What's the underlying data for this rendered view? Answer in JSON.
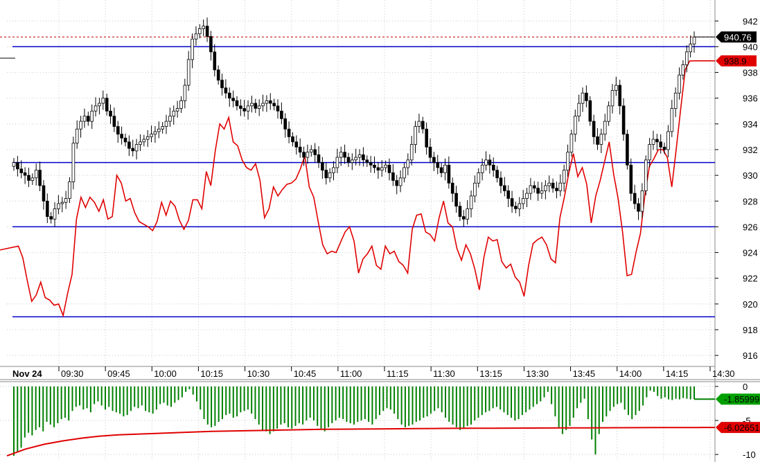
{
  "colors": {
    "grid": "#c8c8c8",
    "candle_up": "#ffffff",
    "candle_down": "#000000",
    "candle_outline": "#000000",
    "red_line": "#e00000",
    "level_line": "#0000c8",
    "histogram": "#008000",
    "ref_dashed": "#c00000",
    "tag_dark_bg": "#000000",
    "tag_red_bg": "#e00000",
    "tag_green_bg": "#00a000"
  },
  "chart_data": [
    {
      "type": "candlestick",
      "date_label": "Nov 24",
      "time_labels": [
        "09:30",
        "09:45",
        "10:00",
        "10:15",
        "10:30",
        "10:45",
        "11:00",
        "11:15",
        "11:30",
        "13:15",
        "13:30",
        "13:45",
        "14:00",
        "14:15",
        "14:30"
      ],
      "yticks": [
        916,
        918,
        920,
        922,
        924,
        926,
        928,
        930,
        932,
        934,
        936,
        938,
        940,
        942
      ],
      "ylim": [
        915.2,
        943.2
      ],
      "horizontal_levels": [
        940,
        931,
        926,
        919
      ],
      "reference_level": 940.76,
      "last_price_tag": "940.76",
      "red_line_tag": "938.9",
      "close_series": [
        931,
        930.5,
        930.2,
        930.0,
        929.6,
        929.8,
        930.4,
        929.2,
        928.0,
        926.8,
        926.6,
        927.4,
        927.8,
        927.9,
        928.2,
        929.5,
        932.5,
        933.6,
        934.2,
        934.6,
        934.2,
        935.0,
        935.4,
        935.6,
        936.0,
        935.0,
        934.6,
        933.8,
        933.2,
        932.9,
        932.6,
        932.1,
        931.9,
        932.4,
        932.6,
        932.8,
        933.0,
        933.2,
        933.4,
        933.6,
        933.8,
        934.2,
        934.6,
        935.0,
        935.2,
        935.8,
        937.0,
        939.0,
        940.6,
        941.0,
        941.4,
        941.6,
        940.8,
        939.6,
        938.2,
        937.4,
        936.8,
        936.4,
        936.0,
        935.8,
        935.4,
        935.2,
        935.0,
        935.4,
        935.6,
        935.2,
        935.4,
        935.6,
        935.8,
        935.6,
        935.4,
        935.0,
        934.4,
        933.6,
        933.0,
        932.6,
        932.2,
        931.8,
        931.4,
        931.8,
        932.0,
        931.6,
        931.0,
        930.4,
        929.8,
        930.2,
        930.6,
        931.4,
        931.8,
        931.4,
        931.0,
        931.2,
        931.4,
        931.6,
        931.2,
        931.0,
        930.8,
        930.6,
        930.4,
        930.6,
        930.8,
        930.2,
        929.6,
        929.2,
        929.8,
        930.6,
        931.2,
        932.4,
        933.8,
        934.2,
        933.6,
        932.2,
        931.4,
        931.0,
        930.6,
        930.2,
        930.8,
        929.4,
        928.6,
        927.6,
        926.8,
        926.6,
        927.4,
        928.4,
        929.4,
        930.2,
        930.8,
        931.2,
        930.8,
        930.4,
        929.8,
        929.2,
        928.8,
        928.2,
        927.6,
        927.4,
        927.8,
        928.2,
        928.6,
        929.2,
        929.0,
        928.6,
        928.8,
        929.2,
        929.4,
        929.0,
        928.8,
        929.4,
        930.4,
        931.8,
        933.2,
        934.6,
        935.6,
        936.4,
        935.8,
        934.2,
        933.0,
        932.4,
        933.2,
        934.2,
        935.4,
        936.6,
        937.0,
        935.4,
        933.2,
        930.8,
        928.6,
        927.8,
        927.2,
        928.8,
        931.2,
        932.4,
        932.8,
        932.6,
        932.2,
        932.0,
        933.4,
        935.2,
        936.4,
        937.8,
        938.6,
        939.6,
        940.2,
        940.76
      ]
    },
    {
      "type": "line",
      "series": [
        {
          "values": [
            924.2,
            924.5,
            923.6,
            921.8,
            920.2,
            920.7,
            921.7,
            920.5,
            920.3,
            919.9,
            920.0,
            919.1,
            920.8,
            922.3,
            926.6,
            928.3,
            927.5,
            928.3,
            927.9,
            927.2,
            928.1,
            926.6,
            926.8,
            930.0,
            929.4,
            928.0,
            928.2,
            927.1,
            926.4,
            926.2,
            926.0,
            925.7,
            926.4,
            927.9,
            926.9,
            928.0,
            927.6,
            926.5,
            925.8,
            926.5,
            928.1,
            928.1,
            927.4,
            930.3,
            929.2,
            931.9,
            934.0,
            933.6,
            934.5,
            932.6,
            932.3,
            931.2,
            930.6,
            930.4,
            930.9,
            929.6,
            926.7,
            927.4,
            929.1,
            928.4,
            928.9,
            929.3,
            929.4,
            929.7,
            930.5,
            931.5,
            929.1,
            928.3,
            926.4,
            924.6,
            923.9,
            924.1,
            924.0,
            924.8,
            925.6,
            926.0,
            924.9,
            922.4,
            923.5,
            923.9,
            924.5,
            923.0,
            922.7,
            924.5,
            923.9,
            924.1,
            923.3,
            923.0,
            922.4,
            925.8,
            926.9,
            927.0,
            925.6,
            925.4,
            924.9,
            926.7,
            928.0,
            926.3,
            926.0,
            924.3,
            923.4,
            924.6,
            923.9,
            922.7,
            921.1,
            923.6,
            925.2,
            924.9,
            925.0,
            923.3,
            922.8,
            923.1,
            922.1,
            921.7,
            920.6,
            923.0,
            924.7,
            925.0,
            925.2,
            924.6,
            923.5,
            923.2,
            926.7,
            928.3,
            930.2,
            931.7,
            929.9,
            930.6,
            929.3,
            926.3,
            928.4,
            929.6,
            931.1,
            932.6,
            930.1,
            928.2,
            925.6,
            922.2,
            922.3,
            924.0,
            925.5,
            928.5,
            930.7,
            931.3,
            932.0,
            932.0,
            931.4,
            929.1,
            932.1,
            935.2,
            938.2,
            938.9,
            938.9
          ]
        }
      ]
    },
    {
      "type": "bar",
      "yticks": [
        0,
        -5,
        -10
      ],
      "ylim": [
        -10.8,
        0.4
      ],
      "histogram_tag": "-1.85999",
      "signal_tag": "-6.02651",
      "series": [
        {
          "values": [
            -10.2,
            -9.6,
            -9.0,
            -7.5,
            -6.8,
            -7.2,
            -6.4,
            -6.0,
            -6.6,
            -5.2,
            -5.6,
            -6.0,
            -5.4,
            -4.8,
            -4.6,
            -5.0,
            -3.6,
            -3.0,
            -2.8,
            -3.4,
            -3.2,
            -3.8,
            -2.6,
            -2.2,
            -2.8,
            -3.4,
            -3.0,
            -3.6,
            -3.8,
            -4.0,
            -4.4,
            -4.2,
            -3.6,
            -3.0,
            -3.2,
            -2.8,
            -3.6,
            -3.8,
            -4.0,
            -3.4,
            -2.6,
            -2.4,
            -2.8,
            -3.0,
            -2.4,
            -2.0,
            -1.6,
            -0.8,
            -0.4,
            -1.2,
            -2.2,
            -3.4,
            -4.8,
            -5.6,
            -6.0,
            -5.8,
            -5.2,
            -4.8,
            -4.2,
            -4.0,
            -4.6,
            -4.4,
            -3.8,
            -3.6,
            -3.4,
            -4.0,
            -4.8,
            -5.6,
            -6.4,
            -6.6,
            -7.0,
            -6.6,
            -6.2,
            -5.6,
            -5.4,
            -6.0,
            -6.2,
            -5.8,
            -5.4,
            -5.6,
            -5.0,
            -4.6,
            -5.0,
            -5.8,
            -6.2,
            -6.6,
            -6.0,
            -5.4,
            -5.0,
            -4.6,
            -4.8,
            -5.2,
            -5.4,
            -5.6,
            -5.2,
            -5.0,
            -4.8,
            -5.2,
            -5.6,
            -4.8,
            -4.2,
            -3.6,
            -3.2,
            -3.4,
            -4.0,
            -4.8,
            -5.6,
            -6.0,
            -5.8,
            -5.6,
            -5.2,
            -5.0,
            -4.6,
            -4.4,
            -4.0,
            -3.6,
            -3.2,
            -3.8,
            -4.6,
            -5.2,
            -5.6,
            -6.0,
            -6.4,
            -6.2,
            -5.8,
            -5.6,
            -5.0,
            -4.6,
            -4.2,
            -3.8,
            -3.6,
            -3.2,
            -3.0,
            -3.4,
            -3.8,
            -4.2,
            -4.6,
            -5.0,
            -4.8,
            -4.2,
            -3.8,
            -3.4,
            -3.0,
            -2.6,
            -2.2,
            -1.6,
            -0.8,
            -2.6,
            -4.4,
            -6.0,
            -7.0,
            -6.4,
            -5.8,
            -4.6,
            -3.2,
            -2.4,
            -1.8,
            -4.8,
            -7.8,
            -10.0,
            -7.0,
            -5.2,
            -4.4,
            -3.6,
            -3.0,
            -2.6,
            -2.4,
            -3.4,
            -4.2,
            -4.8,
            -4.2,
            -3.6,
            -2.8,
            -1.6,
            -0.6,
            -0.8,
            -1.4,
            -1.8,
            -1.6,
            -1.9,
            -2.0,
            -1.8,
            -1.9,
            -1.7,
            -1.8,
            -1.9,
            -1.86
          ]
        },
        {
          "values": [
            -10.2,
            -9.2,
            -8.5,
            -8.0,
            -7.6,
            -7.3,
            -7.1,
            -7.0,
            -6.9,
            -6.8,
            -6.7,
            -6.6,
            -6.55,
            -6.5,
            -6.45,
            -6.4,
            -6.35,
            -6.3,
            -6.28,
            -6.26,
            -6.24,
            -6.22,
            -6.2,
            -6.18,
            -6.16,
            -6.15,
            -6.14,
            -6.13,
            -6.12,
            -6.11,
            -6.1,
            -6.09,
            -6.08,
            -6.07,
            -6.06,
            -6.05,
            -6.04,
            -6.03,
            -6.027
          ]
        }
      ]
    }
  ]
}
